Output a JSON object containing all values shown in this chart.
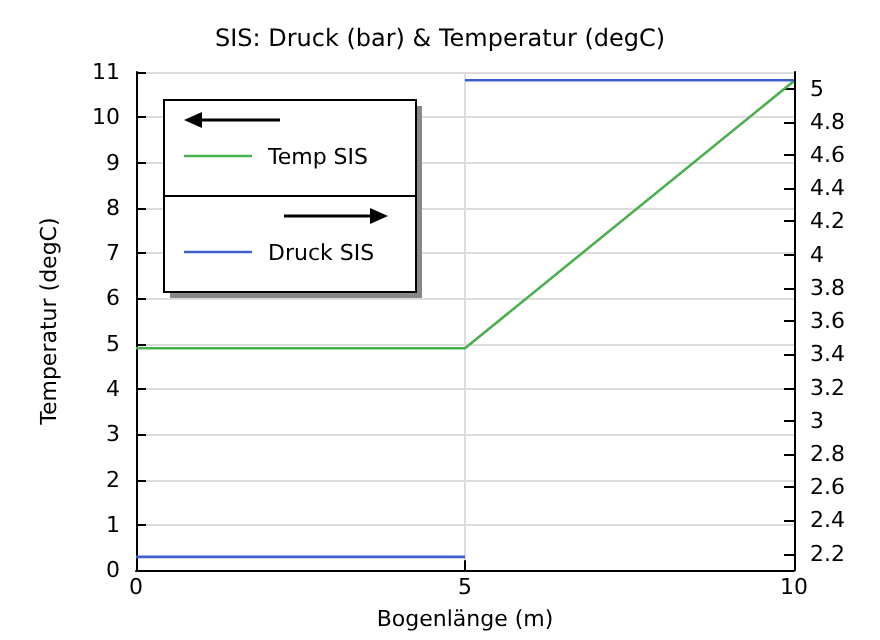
{
  "chart_data": {
    "type": "line",
    "title": "SIS: Druck (bar) & Temperatur (degC)",
    "xlabel": "Bogenlänge (m)",
    "ylabel": "Temperatur (degC)",
    "xlim": [
      0,
      10
    ],
    "xticks": [
      0,
      5,
      10
    ],
    "ylim": [
      0,
      11
    ],
    "yticks": [
      0,
      1,
      2,
      3,
      4,
      5,
      6,
      7,
      8,
      9,
      10,
      11
    ],
    "y2lim": [
      2.1,
      5.1
    ],
    "y2ticks": [
      2.2,
      2.4,
      2.6,
      2.8,
      3,
      3.2,
      3.4,
      3.6,
      3.8,
      4,
      4.2,
      4.4,
      4.6,
      4.8,
      5
    ],
    "grid": true,
    "legend": "top left",
    "series": [
      {
        "name": "Temp SIS",
        "color": "#4caf50",
        "x": [
          0,
          5,
          10
        ],
        "values": [
          4.9,
          4.9,
          10.8
        ]
      },
      {
        "name": "Druck SIS",
        "color": "#3f5fcf",
        "axis": "y2",
        "x": [
          0,
          5
        ],
        "values": [
          2.18,
          2.18
        ]
      },
      {
        "color": "#3f5fcf",
        "axis": "y2",
        "x": [
          5,
          10
        ],
        "values": [
          5.05,
          5.05
        ]
      }
    ]
  }
}
